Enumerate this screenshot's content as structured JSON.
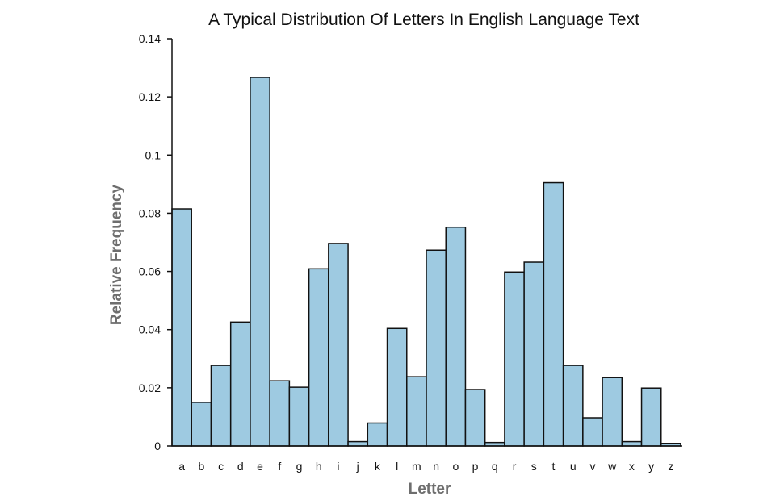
{
  "chart_data": {
    "type": "bar",
    "title": "A Typical Distribution Of Letters In English Language Text",
    "xlabel": "Letter",
    "ylabel": "Relative Frequency",
    "categories": [
      "a",
      "b",
      "c",
      "d",
      "e",
      "f",
      "g",
      "h",
      "i",
      "j",
      "k",
      "l",
      "m",
      "n",
      "o",
      "p",
      "q",
      "r",
      "s",
      "t",
      "u",
      "v",
      "w",
      "x",
      "y",
      "z"
    ],
    "values": [
      0.0815,
      0.015,
      0.0277,
      0.0426,
      0.1267,
      0.0224,
      0.0202,
      0.0609,
      0.0696,
      0.0015,
      0.0079,
      0.0404,
      0.0238,
      0.0673,
      0.0752,
      0.0194,
      0.0012,
      0.0598,
      0.0632,
      0.0905,
      0.0277,
      0.0097,
      0.0235,
      0.0015,
      0.0199,
      0.0009
    ],
    "ylim": [
      0,
      0.14
    ],
    "yticks": [
      "0",
      "0.02",
      "0.04",
      "0.06",
      "0.08",
      "0.1",
      "0.12",
      "0.14"
    ],
    "grid": false,
    "legend": "none",
    "bar_color": "#9ecae1",
    "edge_color": "#111111"
  }
}
